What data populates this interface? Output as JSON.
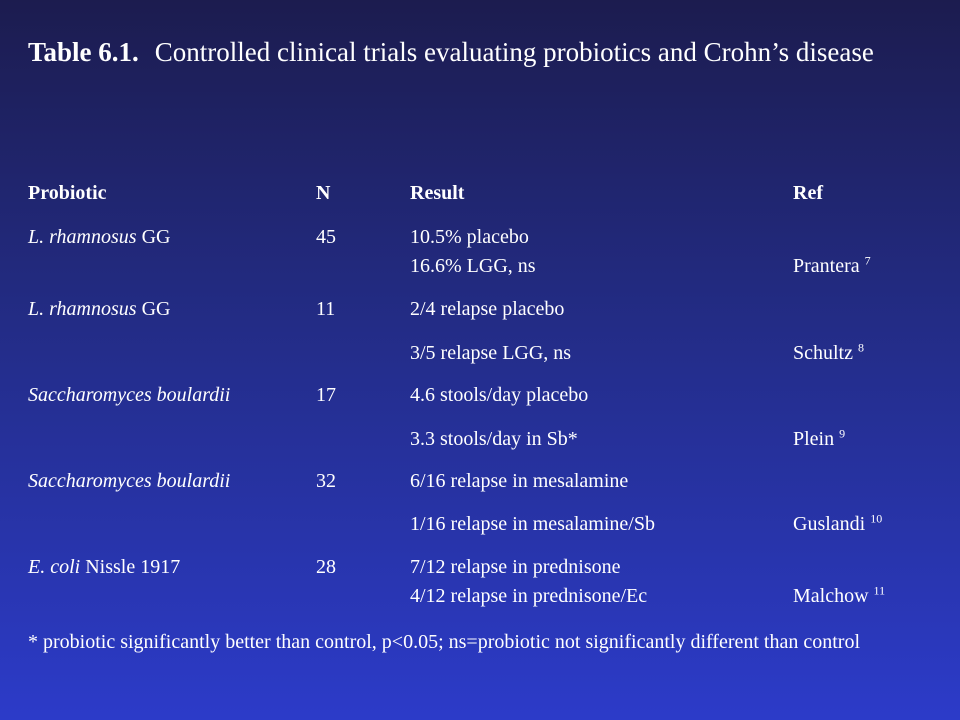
{
  "title": {
    "number": "Table 6.1.",
    "text": "Controlled clinical trials evaluating probiotics and Crohn’s disease"
  },
  "table": {
    "headers": [
      "Probiotic",
      "N",
      "Result",
      "Ref"
    ],
    "rows": [
      {
        "probiotic_italic": "L. rhamnosus",
        "probiotic_rest": " GG",
        "n": "45",
        "result_1": "10.5%  placebo",
        "result_2": "16.6% LGG, ns",
        "ref_name": "Prantera ",
        "ref_num": "7"
      },
      {
        "probiotic_italic": "L. rhamnosus",
        "probiotic_rest": " GG",
        "n": "11",
        "result_1": "2/4 relapse placebo",
        "result_2": "3/5 relapse LGG, ns",
        "ref_name": "Schultz ",
        "ref_num": "8"
      },
      {
        "probiotic_italic": "Saccharomyces boulardii",
        "probiotic_rest": "",
        "n": "17",
        "result_1": "4.6 stools/day placebo",
        "result_2": "3.3  stools/day  in Sb*",
        "ref_name": "Plein ",
        "ref_num": "9"
      },
      {
        "probiotic_italic": "Saccharomyces boulardii",
        "probiotic_rest": "",
        "n": "32",
        "result_1": "6/16 relapse in mesalamine",
        "result_2": "1/16 relapse in mesalamine/Sb",
        "ref_name": "Guslandi ",
        "ref_num": "10"
      },
      {
        "probiotic_italic": "E. coli",
        "probiotic_rest": " Nissle 1917",
        "n": "28",
        "result_1": "7/12 relapse in prednisone",
        "result_2": "4/12 relapse in prednisone/Ec",
        "ref_name": "Malchow ",
        "ref_num": "11"
      }
    ]
  },
  "footnote": " * probiotic significantly better than control, p<0.05; ns=probiotic not significantly different than control"
}
